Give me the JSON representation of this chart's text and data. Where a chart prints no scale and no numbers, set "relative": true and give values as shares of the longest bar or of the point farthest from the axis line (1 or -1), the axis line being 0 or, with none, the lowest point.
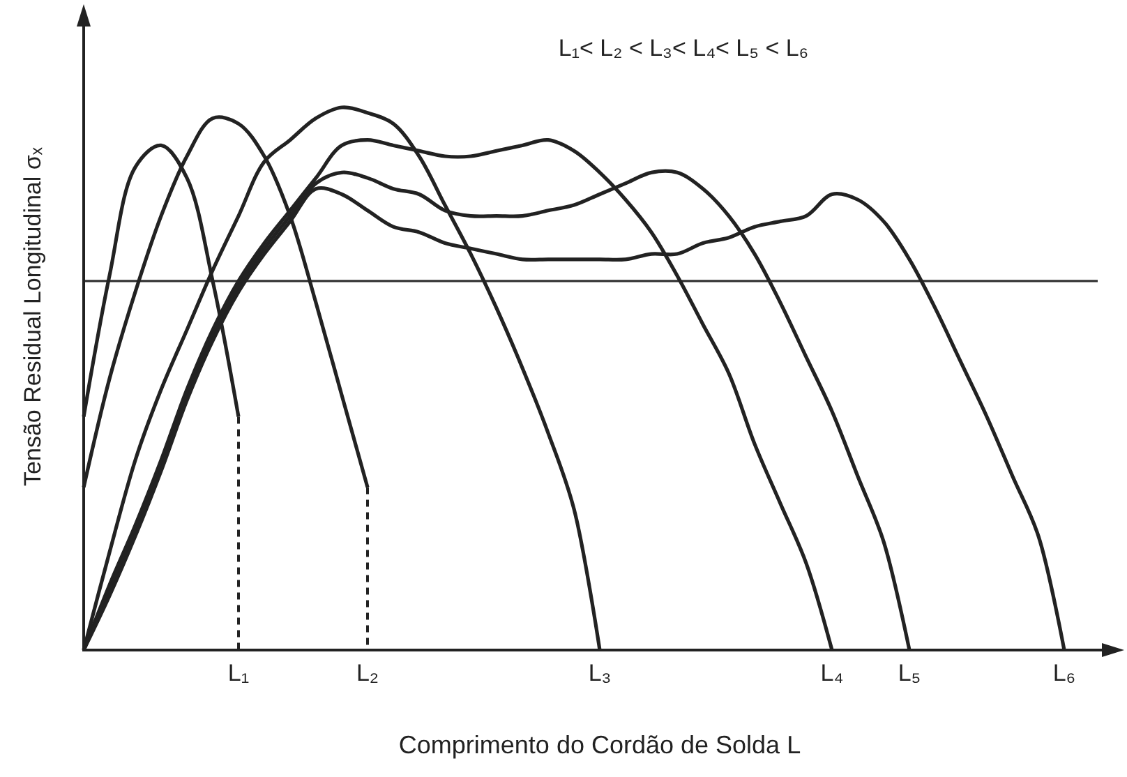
{
  "chart_data": {
    "type": "line",
    "title": "L₁< L₂ < L₃< L₄< L₅ < L₆",
    "xlabel": "Comprimento do Cordão de Solda L",
    "ylabel": "Tensão Residual Longitudinal σₓ",
    "relative": true,
    "categories": [
      null,
      null,
      null,
      null,
      null,
      null,
      "L₁",
      null,
      null,
      null,
      null,
      "L₂",
      null,
      null,
      null,
      null,
      null,
      null,
      null,
      null,
      "L₃",
      null,
      null,
      null,
      null,
      null,
      null,
      null,
      null,
      "L₄",
      null,
      null,
      "L₅",
      null,
      null,
      null,
      null,
      null,
      "L₆",
      null,
      null
    ],
    "ref_lines": [
      {
        "axis": "y",
        "value": 0.68,
        "color": "#333333"
      }
    ],
    "series": [
      {
        "color": "#222222",
        "values": [
          0.43,
          0.69,
          0.89,
          0.93,
          0.87,
          0.68,
          0.43,
          null,
          null,
          null,
          null,
          null,
          null,
          null,
          null,
          null,
          null,
          null,
          null,
          null,
          null,
          null,
          null,
          null,
          null,
          null,
          null,
          null,
          null,
          null,
          null,
          null,
          null,
          null,
          null,
          null,
          null,
          null,
          null,
          null,
          null
        ]
      },
      {
        "color": "#222222",
        "values": [
          0.3,
          0.5,
          0.66,
          0.8,
          0.91,
          0.98,
          0.97,
          0.91,
          0.8,
          0.64,
          0.47,
          0.3,
          null,
          null,
          null,
          null,
          null,
          null,
          null,
          null,
          null,
          null,
          null,
          null,
          null,
          null,
          null,
          null,
          null,
          null,
          null,
          null,
          null,
          null,
          null,
          null,
          null,
          null,
          null,
          null,
          null
        ]
      },
      {
        "color": "#222222",
        "values": [
          0,
          0.18,
          0.35,
          0.48,
          0.59,
          0.7,
          0.8,
          0.9,
          0.94,
          0.98,
          1,
          0.99,
          0.97,
          0.91,
          0.82,
          0.73,
          0.63,
          0.52,
          0.4,
          0.26,
          0,
          null,
          null,
          null,
          null,
          null,
          null,
          null,
          null,
          null,
          null,
          null,
          null,
          null,
          null,
          null,
          null,
          null,
          null,
          null,
          null
        ]
      },
      {
        "color": "#222222",
        "values": [
          0,
          0.12,
          0.23,
          0.35,
          0.48,
          0.59,
          0.68,
          0.75,
          0.81,
          0.87,
          0.93,
          0.94,
          0.93,
          0.92,
          0.91,
          0.91,
          0.92,
          0.93,
          0.94,
          0.92,
          0.88,
          0.83,
          0.77,
          0.69,
          0.6,
          0.51,
          0.38,
          0.27,
          0.16,
          0,
          null,
          null,
          null,
          null,
          null,
          null,
          null,
          null,
          null,
          null,
          null
        ]
      },
      {
        "color": "#222222",
        "values": [
          0,
          0.11,
          0.22,
          0.34,
          0.47,
          0.58,
          0.67,
          0.74,
          0.8,
          0.86,
          0.88,
          0.87,
          0.85,
          0.84,
          0.81,
          0.8,
          0.8,
          0.8,
          0.81,
          0.82,
          0.84,
          0.86,
          0.88,
          0.88,
          0.85,
          0.8,
          0.73,
          0.64,
          0.54,
          0.44,
          0.32,
          0.2,
          0,
          null,
          null,
          null,
          null,
          null,
          null,
          null,
          null
        ]
      },
      {
        "color": "#222222",
        "values": [
          0,
          0.1,
          0.21,
          0.33,
          0.46,
          0.57,
          0.66,
          0.73,
          0.79,
          0.85,
          0.84,
          0.81,
          0.78,
          0.77,
          0.75,
          0.74,
          0.73,
          0.72,
          0.72,
          0.72,
          0.72,
          0.72,
          0.73,
          0.73,
          0.75,
          0.76,
          0.78,
          0.79,
          0.8,
          0.84,
          0.83,
          0.79,
          0.72,
          0.63,
          0.53,
          0.43,
          0.32,
          0.21,
          0,
          null,
          null
        ]
      },
      {
        "color": "#222222",
        "line_style": "dashed",
        "x": [
          "L₁",
          "L₁"
        ],
        "values": [
          0.43,
          0
        ]
      },
      {
        "color": "#222222",
        "line_style": "dashed",
        "x": [
          "L₂",
          "L₂"
        ],
        "values": [
          0.3,
          0
        ]
      }
    ]
  }
}
